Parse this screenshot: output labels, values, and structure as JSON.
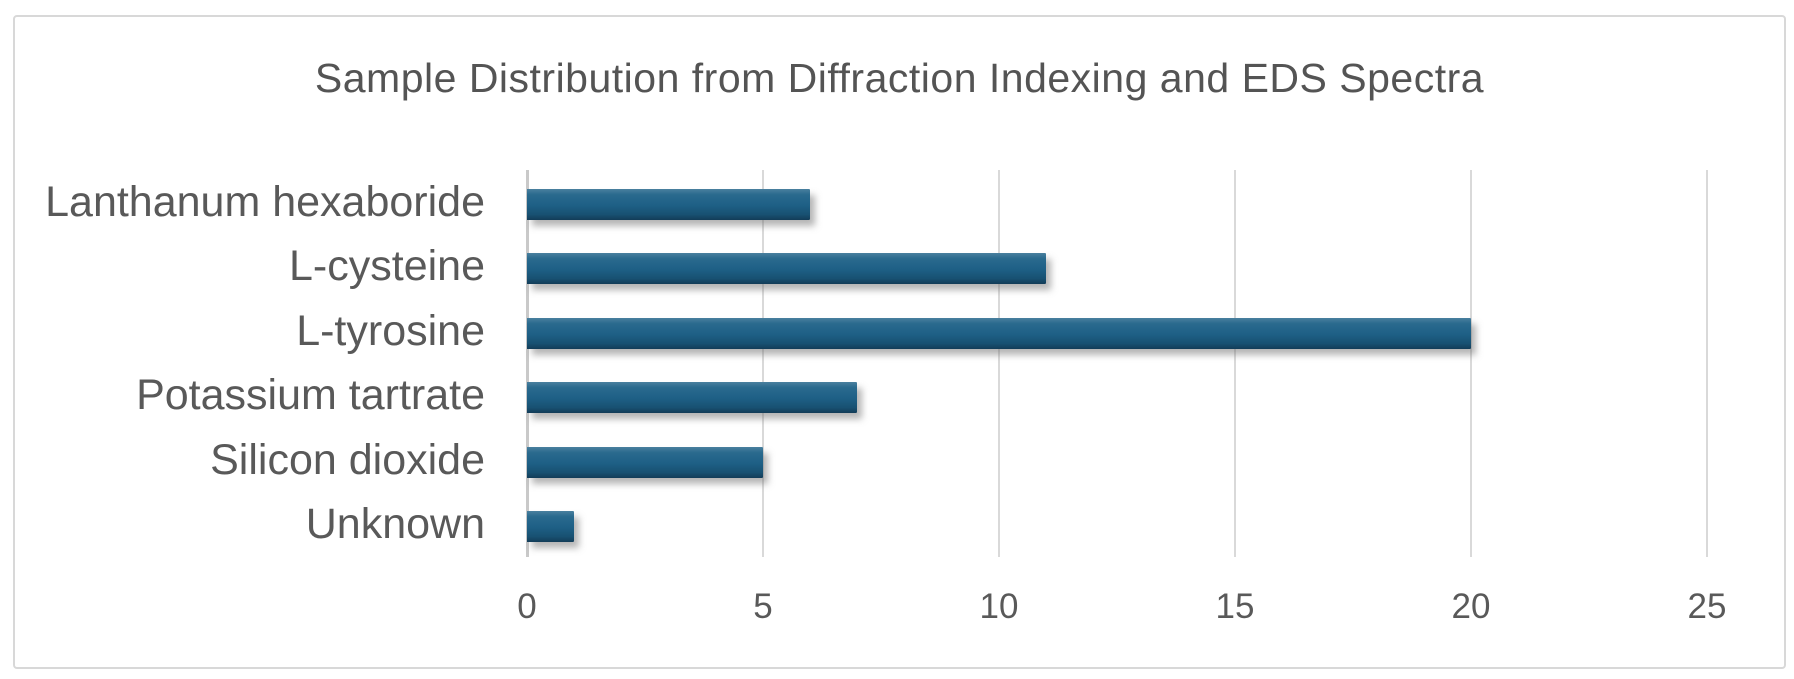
{
  "page": {
    "background": "#ffffff",
    "frame_border_color": "#d8d8d8"
  },
  "chart_data": {
    "type": "bar",
    "orientation": "horizontal",
    "title": "Sample Distribution from Diffraction Indexing and EDS Spectra",
    "categories": [
      "Lanthanum hexaboride",
      "L-cysteine",
      "L-tyrosine",
      "Potassium tartrate",
      "Silicon dioxide",
      "Unknown"
    ],
    "values": [
      6,
      11,
      20,
      7,
      5,
      1
    ],
    "x_ticks": [
      0,
      5,
      10,
      15,
      20,
      25
    ],
    "xlim": [
      0,
      25
    ],
    "xlabel": "",
    "ylabel": "",
    "grid": "vertical",
    "legend": "none",
    "colors": {
      "bar_gradient_top": "#4a809e",
      "bar_gradient_mid": "#1e6086",
      "bar_gradient_bottom": "#133c58",
      "gridline": "#d9d9d9",
      "axis_line": "#c9c9c9",
      "text": "#595959",
      "title_text": "#545454"
    }
  }
}
